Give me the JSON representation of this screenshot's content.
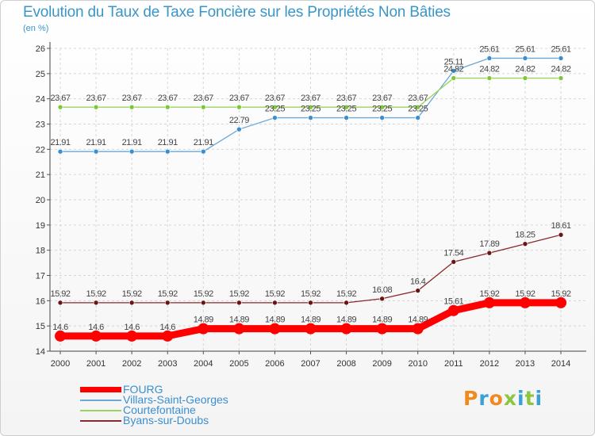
{
  "header": {
    "title": "Evolution du Taux de Taxe Foncière sur les Propriétés Non Bâties",
    "unit": "(en %)"
  },
  "logo": {
    "text": "Proxiti",
    "colors": [
      "#f08a1e",
      "#3aa0d8",
      "#f08a1e",
      "#8cc63f",
      "#3aa0d8",
      "#8cc63f",
      "#3aa0d8"
    ]
  },
  "chart_data": {
    "type": "line",
    "title": "Evolution du Taux de Taxe Foncière sur les Propriétés Non Bâties",
    "ylabel": "(en %)",
    "xlabel": "",
    "x": [
      "2000",
      "2001",
      "2002",
      "2003",
      "2004",
      "2005",
      "2006",
      "2007",
      "2008",
      "2009",
      "2010",
      "2011",
      "2012",
      "2013",
      "2014"
    ],
    "ylim": [
      14,
      26
    ],
    "yticks": [
      "14",
      "15",
      "16",
      "17",
      "18",
      "19",
      "20",
      "21",
      "22",
      "23",
      "24",
      "25",
      "26"
    ],
    "grid": true,
    "legend_position": "bottom-left",
    "series": [
      {
        "name": "FOURG",
        "color": "#ff0000",
        "emphasis": true,
        "values": [
          14.6,
          14.6,
          14.6,
          14.6,
          14.89,
          14.89,
          14.89,
          14.89,
          14.89,
          14.89,
          14.89,
          15.61,
          15.92,
          15.92,
          15.92
        ],
        "labels": [
          "14.6",
          "14.6",
          "14.6",
          "14.6",
          "14.89",
          "14.89",
          "14.89",
          "14.89",
          "14.89",
          "14.89",
          "14.89",
          "15.61",
          "15.92",
          "15.92",
          "15.92"
        ]
      },
      {
        "name": "Villars-Saint-Georges",
        "color": "#6aa8d8",
        "marker": "#3a8fd0",
        "values": [
          21.91,
          21.91,
          21.91,
          21.91,
          21.91,
          22.79,
          23.25,
          23.25,
          23.25,
          23.25,
          23.25,
          25.11,
          25.61,
          25.61,
          25.61
        ],
        "labels": [
          "21.91",
          "21.91",
          "21.91",
          "21.91",
          "21.91",
          "22.79",
          "23.25",
          "23.25",
          "23.25",
          "23.25",
          "23.25",
          "25.11",
          "25.61",
          "25.61",
          "25.61"
        ]
      },
      {
        "name": "Courtefontaine",
        "color": "#9ad45a",
        "marker": "#7cc83a",
        "values": [
          23.67,
          23.67,
          23.67,
          23.67,
          23.67,
          23.67,
          23.67,
          23.67,
          23.67,
          23.67,
          23.67,
          24.82,
          24.82,
          24.82,
          24.82
        ],
        "labels": [
          "23.67",
          "23.67",
          "23.67",
          "23.67",
          "23.67",
          "23.67",
          "23.67",
          "23.67",
          "23.67",
          "23.67",
          "23.67",
          "24.82",
          "24.82",
          "24.82",
          "24.82"
        ]
      },
      {
        "name": "Byans-sur-Doubs",
        "color": "#8a2a2a",
        "marker": "#6a1414",
        "values": [
          15.92,
          15.92,
          15.92,
          15.92,
          15.92,
          15.92,
          15.92,
          15.92,
          15.92,
          16.08,
          16.4,
          17.54,
          17.89,
          18.25,
          18.61
        ],
        "labels": [
          "15.92",
          "15.92",
          "15.92",
          "15.92",
          "15.92",
          "15.92",
          "15.92",
          "15.92",
          "15.92",
          "16.08",
          "16.4",
          "17.54",
          "17.89",
          "18.25",
          "18.61"
        ]
      }
    ]
  }
}
